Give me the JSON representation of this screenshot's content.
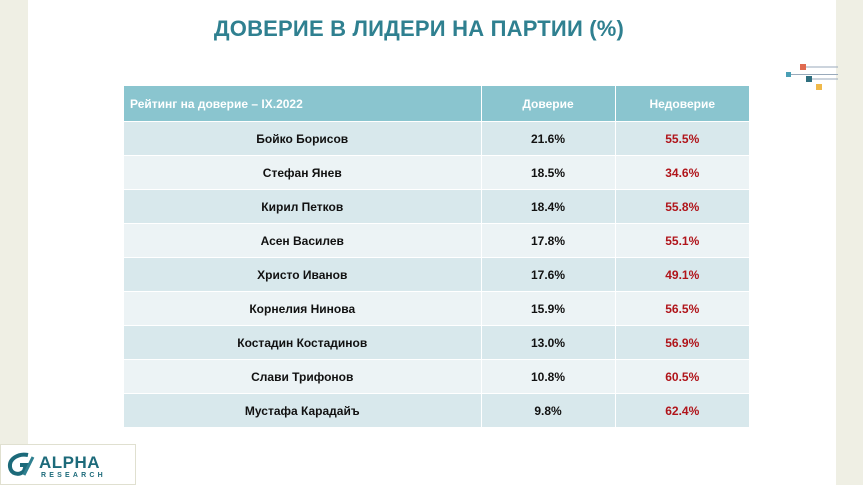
{
  "title": "ДОВЕРИЕ В ЛИДЕРИ НА ПАРТИИ (%)",
  "table": {
    "headers": [
      "Рейтинг на доверие – IX.2022",
      "Доверие",
      "Недоверие"
    ],
    "rows": [
      {
        "name": "Бойко Борисов",
        "trust": "21.6%",
        "distrust": "55.5%"
      },
      {
        "name": "Стефан Янев",
        "trust": "18.5%",
        "distrust": "34.6%"
      },
      {
        "name": "Кирил Петков",
        "trust": "18.4%",
        "distrust": "55.8%"
      },
      {
        "name": "Асен Василев",
        "trust": "17.8%",
        "distrust": "55.1%"
      },
      {
        "name": "Христо Иванов",
        "trust": "17.6%",
        "distrust": "49.1%"
      },
      {
        "name": "Корнелия Нинова",
        "trust": "15.9%",
        "distrust": "56.5%"
      },
      {
        "name": "Костадин Костадинов",
        "trust": "13.0%",
        "distrust": "56.9%"
      },
      {
        "name": "Слави Трифонов",
        "trust": "10.8%",
        "distrust": "60.5%"
      },
      {
        "name": "Мустафа Карадайъ",
        "trust": "9.8%",
        "distrust": "62.4%"
      }
    ]
  },
  "logo": {
    "word": "ALPHA",
    "sub": "RESEARCH"
  },
  "colors": {
    "title": "#2f8090",
    "header_bg": "#8ac5cf",
    "row_odd": "#d8e8ec",
    "row_even": "#ecf3f5",
    "distrust_text": "#b0141a"
  }
}
